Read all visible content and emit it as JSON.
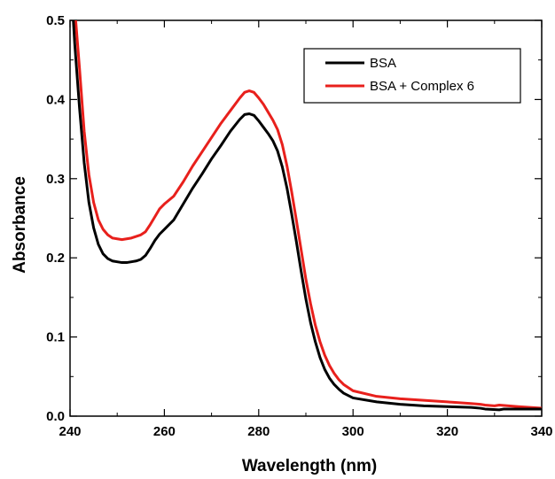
{
  "chart_data": {
    "type": "line",
    "title": "",
    "xlabel": "Wavelength (nm)",
    "ylabel": "Absorbance",
    "xlim": [
      240,
      340
    ],
    "ylim": [
      0.0,
      0.5
    ],
    "x_ticks": [
      240,
      260,
      280,
      300,
      320,
      340
    ],
    "y_ticks": [
      0.0,
      0.1,
      0.2,
      0.3,
      0.4,
      0.5
    ],
    "x_tick_labels": [
      "240",
      "260",
      "280",
      "300",
      "320",
      "340"
    ],
    "y_tick_labels": [
      "0.0",
      "0.1",
      "0.2",
      "0.3",
      "0.4",
      "0.5"
    ],
    "grid": false,
    "legend_position": "top-right",
    "series": [
      {
        "name": "BSA",
        "color": "#000000",
        "points": [
          [
            240.7,
            0.5
          ],
          [
            241,
            0.47
          ],
          [
            242,
            0.39
          ],
          [
            243,
            0.32
          ],
          [
            244,
            0.27
          ],
          [
            245,
            0.238
          ],
          [
            246,
            0.217
          ],
          [
            247,
            0.205
          ],
          [
            248,
            0.199
          ],
          [
            249,
            0.196
          ],
          [
            250,
            0.195
          ],
          [
            251,
            0.194
          ],
          [
            252,
            0.194
          ],
          [
            253,
            0.195
          ],
          [
            254,
            0.196
          ],
          [
            255,
            0.198
          ],
          [
            256,
            0.203
          ],
          [
            257,
            0.212
          ],
          [
            258,
            0.222
          ],
          [
            259,
            0.23
          ],
          [
            260,
            0.236
          ],
          [
            262,
            0.248
          ],
          [
            264,
            0.268
          ],
          [
            266,
            0.288
          ],
          [
            268,
            0.306
          ],
          [
            270,
            0.325
          ],
          [
            272,
            0.342
          ],
          [
            274,
            0.36
          ],
          [
            276,
            0.375
          ],
          [
            277,
            0.381
          ],
          [
            278,
            0.382
          ],
          [
            279,
            0.38
          ],
          [
            280,
            0.373
          ],
          [
            281,
            0.365
          ],
          [
            282,
            0.357
          ],
          [
            283,
            0.348
          ],
          [
            284,
            0.335
          ],
          [
            285,
            0.315
          ],
          [
            286,
            0.288
          ],
          [
            287,
            0.255
          ],
          [
            288,
            0.22
          ],
          [
            289,
            0.183
          ],
          [
            290,
            0.148
          ],
          [
            291,
            0.118
          ],
          [
            292,
            0.094
          ],
          [
            293,
            0.074
          ],
          [
            294,
            0.059
          ],
          [
            295,
            0.048
          ],
          [
            296,
            0.04
          ],
          [
            297,
            0.034
          ],
          [
            298,
            0.029
          ],
          [
            300,
            0.023
          ],
          [
            305,
            0.018
          ],
          [
            310,
            0.015
          ],
          [
            315,
            0.013
          ],
          [
            320,
            0.012
          ],
          [
            325,
            0.011
          ],
          [
            327,
            0.01
          ],
          [
            328,
            0.009
          ],
          [
            331,
            0.008
          ],
          [
            332,
            0.009
          ],
          [
            335,
            0.009
          ],
          [
            340,
            0.009
          ]
        ]
      },
      {
        "name": "BSA + Complex 6",
        "color": "#e8201c",
        "points": [
          [
            241.2,
            0.5
          ],
          [
            242,
            0.44
          ],
          [
            243,
            0.36
          ],
          [
            244,
            0.305
          ],
          [
            245,
            0.27
          ],
          [
            246,
            0.248
          ],
          [
            247,
            0.236
          ],
          [
            248,
            0.229
          ],
          [
            249,
            0.225
          ],
          [
            250,
            0.224
          ],
          [
            251,
            0.223
          ],
          [
            252,
            0.224
          ],
          [
            253,
            0.225
          ],
          [
            254,
            0.227
          ],
          [
            255,
            0.229
          ],
          [
            256,
            0.233
          ],
          [
            257,
            0.242
          ],
          [
            258,
            0.252
          ],
          [
            259,
            0.262
          ],
          [
            260,
            0.268
          ],
          [
            262,
            0.278
          ],
          [
            264,
            0.296
          ],
          [
            266,
            0.316
          ],
          [
            268,
            0.334
          ],
          [
            270,
            0.352
          ],
          [
            272,
            0.37
          ],
          [
            274,
            0.386
          ],
          [
            276,
            0.402
          ],
          [
            277,
            0.409
          ],
          [
            278,
            0.411
          ],
          [
            279,
            0.409
          ],
          [
            280,
            0.402
          ],
          [
            281,
            0.394
          ],
          [
            282,
            0.384
          ],
          [
            283,
            0.374
          ],
          [
            284,
            0.362
          ],
          [
            285,
            0.343
          ],
          [
            286,
            0.316
          ],
          [
            287,
            0.283
          ],
          [
            288,
            0.247
          ],
          [
            289,
            0.21
          ],
          [
            290,
            0.173
          ],
          [
            291,
            0.142
          ],
          [
            292,
            0.115
          ],
          [
            293,
            0.094
          ],
          [
            294,
            0.077
          ],
          [
            295,
            0.064
          ],
          [
            296,
            0.054
          ],
          [
            297,
            0.046
          ],
          [
            298,
            0.04
          ],
          [
            300,
            0.032
          ],
          [
            305,
            0.025
          ],
          [
            310,
            0.022
          ],
          [
            315,
            0.02
          ],
          [
            320,
            0.018
          ],
          [
            325,
            0.016
          ],
          [
            327,
            0.015
          ],
          [
            328,
            0.014
          ],
          [
            330,
            0.013
          ],
          [
            331,
            0.014
          ],
          [
            335,
            0.012
          ],
          [
            340,
            0.01
          ]
        ]
      }
    ]
  }
}
